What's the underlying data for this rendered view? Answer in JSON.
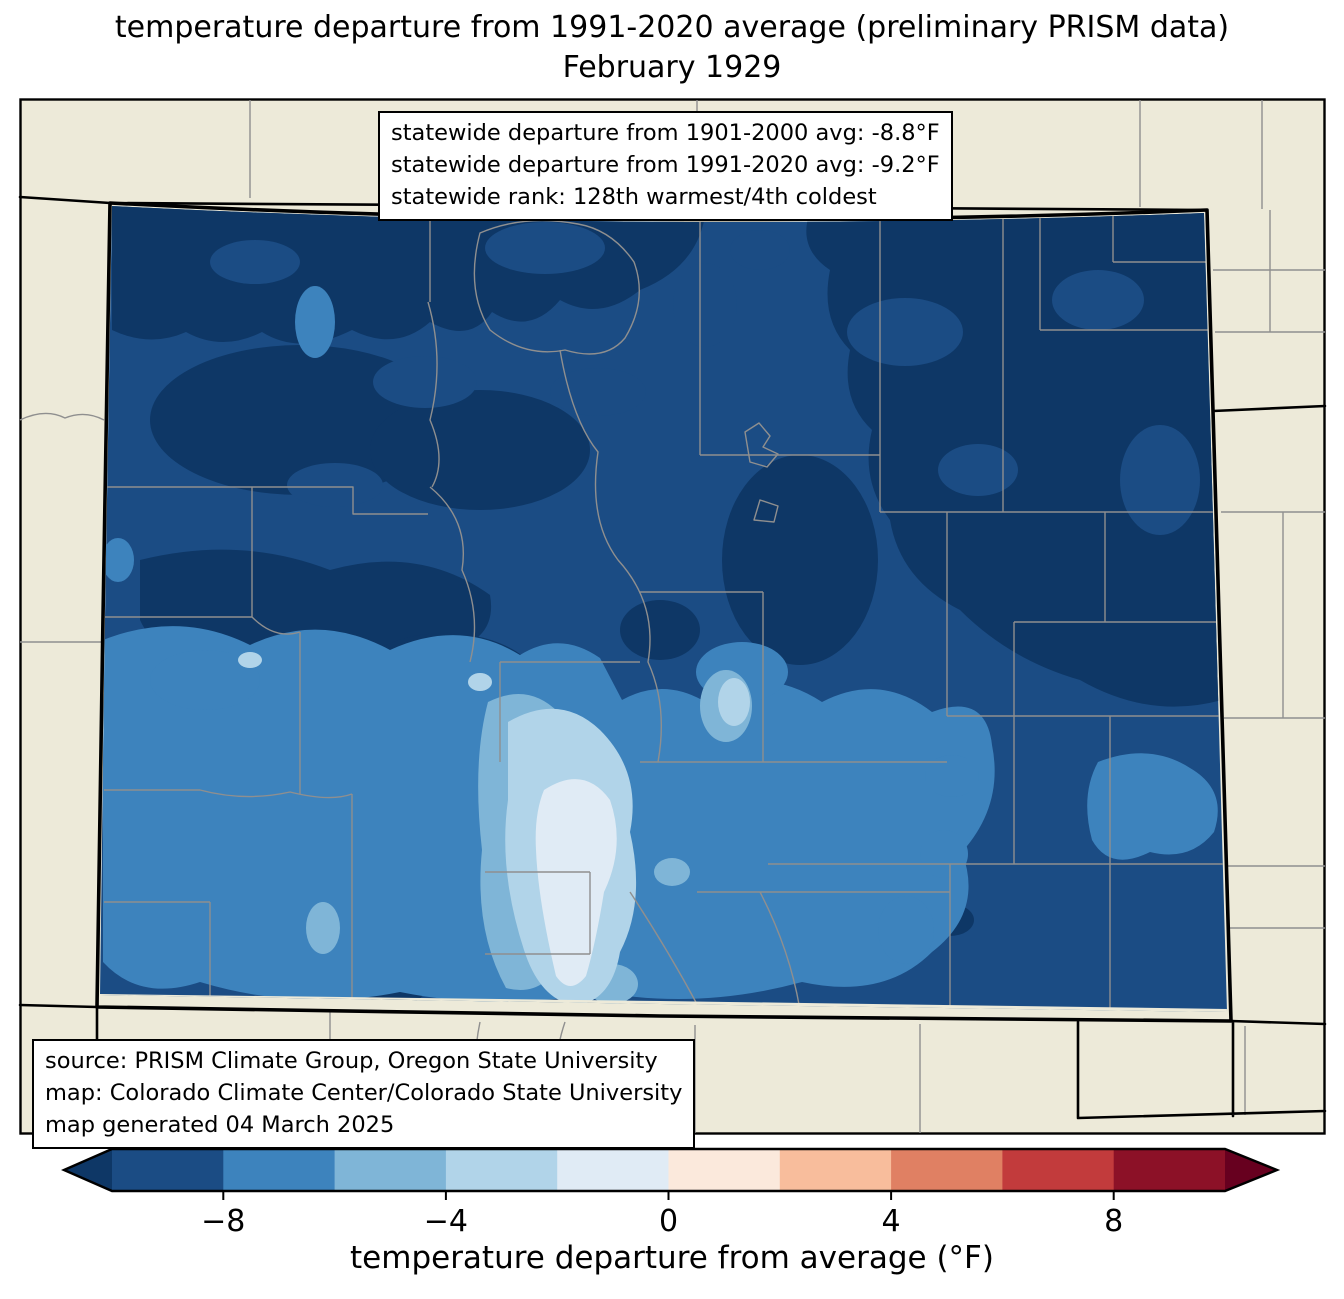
{
  "title": {
    "line1": "temperature departure from 1991-2020 average (preliminary PRISM data)",
    "line2": "February 1929"
  },
  "stats_box": {
    "lines": [
      "statewide departure from 1901-2000 avg: -8.8°F",
      "statewide departure from 1991-2020 avg: -9.2°F",
      "statewide rank: 128th warmest/4th coldest"
    ]
  },
  "source_box": {
    "lines": [
      "source: PRISM Climate Group, Oregon State University",
      "map: Colorado Climate Center/Colorado State University",
      "map generated 04 March 2025"
    ]
  },
  "colorbar": {
    "label": "temperature departure from average (°F)",
    "range": [
      -10,
      10
    ],
    "boundaries": [
      -10,
      -8,
      -6,
      -4,
      -2,
      0,
      2,
      4,
      6,
      8,
      10
    ],
    "ticks": [
      {
        "value": -8,
        "label": "−8"
      },
      {
        "value": -4,
        "label": "−4"
      },
      {
        "value": 0,
        "label": "0"
      },
      {
        "value": 4,
        "label": "4"
      },
      {
        "value": 8,
        "label": "8"
      }
    ],
    "under_color": "#0e3766",
    "over_color": "#67001f",
    "segments": [
      "#1b4c84",
      "#3d83bd",
      "#7fb5d7",
      "#b1d4e9",
      "#e0ebf5",
      "#fbe9dc",
      "#f8bd9c",
      "#e08063",
      "#c23b3c",
      "#8c1127"
    ]
  },
  "map": {
    "region": "Colorado",
    "background": "#edead9",
    "county_line": "#8f8f8f",
    "state_line": "#000000",
    "fills": {
      "under": "#0e3766",
      "m10_m8": "#1b4c84",
      "m8_m6": "#3d83bd",
      "m6_m4": "#7fb5d7",
      "m4_m2": "#b1d4e9",
      "m2_0": "#e0ebf5"
    }
  },
  "chart_data": {
    "type": "choropleth_map",
    "region": "Colorado",
    "variable": "temperature departure from 1991-2020 average (°F)",
    "period": "February 1929",
    "statewide_departure_from_1901_2000_avg_F": -8.8,
    "statewide_departure_from_1991_2020_avg_F": -9.2,
    "statewide_rank": "128th warmest/4th coldest",
    "color_scale_boundaries_F": [
      -10,
      -8,
      -6,
      -4,
      -2,
      0,
      2,
      4,
      6,
      8,
      10
    ],
    "dominant_range_F": "below -8 statewide; mildest (-2 to 0) in south-central valley"
  }
}
